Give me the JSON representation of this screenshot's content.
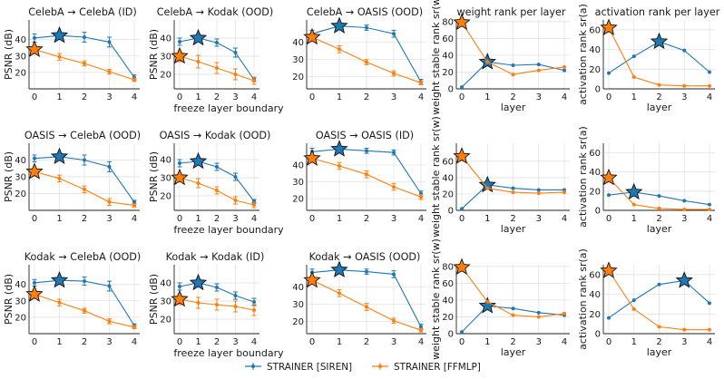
{
  "colors": {
    "siren": "#1f77b4",
    "ffmlp": "#ff7f0e"
  },
  "legend": {
    "siren": "STRAINER [SIREN]",
    "ffmlp": "STRAINER [FFMLP]"
  },
  "chart_data": [
    {
      "type": "line",
      "title": "CelebA → CelebA (ID)",
      "xlabel": "",
      "ylabel": "PSNR (dB)",
      "x": [
        0,
        1,
        2,
        3,
        4
      ],
      "ylim": [
        10,
        52
      ],
      "yticks": [
        20,
        30,
        40
      ],
      "series": [
        {
          "name": "STRAINER [SIREN]",
          "values": [
            41,
            42.5,
            41.5,
            38.5,
            17
          ],
          "err": [
            2.5,
            2,
            3,
            3,
            1.5
          ],
          "star": 1
        },
        {
          "name": "STRAINER [FFMLP]",
          "values": [
            34,
            29.5,
            25.5,
            20.5,
            15.5
          ],
          "err": [
            2,
            2,
            1.5,
            1.5,
            1
          ],
          "star": 0
        }
      ]
    },
    {
      "type": "line",
      "title": "CelebA → Kodak (OOD)",
      "xlabel": "",
      "ylabel": "PSNR (dB)",
      "x": [
        0,
        1,
        2,
        3,
        4
      ],
      "ylim": [
        12,
        50
      ],
      "yticks": [
        20,
        30,
        40
      ],
      "series": [
        {
          "name": "STRAINER [SIREN]",
          "values": [
            38,
            40,
            37.5,
            32,
            17
          ],
          "err": [
            2,
            2,
            2,
            2.5,
            1
          ],
          "star": 1
        },
        {
          "name": "STRAINER [FFMLP]",
          "values": [
            30,
            27,
            23.5,
            20,
            16.5
          ],
          "err": [
            3,
            3.5,
            3,
            3,
            2
          ],
          "star": 0
        }
      ]
    },
    {
      "type": "line",
      "title": "CelebA → OASIS (OOD)",
      "xlabel": "",
      "ylabel": "",
      "x": [
        0,
        1,
        2,
        3,
        4
      ],
      "ylim": [
        13,
        53
      ],
      "yticks": [
        20,
        30,
        40
      ],
      "series": [
        {
          "name": "STRAINER [SIREN]",
          "values": [
            45,
            49.5,
            48.5,
            45,
            17
          ],
          "err": [
            2,
            1.5,
            1.5,
            2,
            1.5
          ],
          "star": 1
        },
        {
          "name": "STRAINER [FFMLP]",
          "values": [
            43,
            36,
            28.5,
            22,
            16.5
          ],
          "err": [
            2,
            2,
            1.5,
            1.5,
            1
          ],
          "star": 0
        }
      ]
    },
    {
      "type": "line",
      "title": "weight rank per layer",
      "xlabel": "layer",
      "ylabel": "weight stable rank sr(w)",
      "x": [
        0,
        1,
        2,
        3,
        4
      ],
      "ylim": [
        0,
        82
      ],
      "yticks": [
        0,
        20,
        40,
        60,
        80
      ],
      "series": [
        {
          "name": "STRAINER [SIREN]",
          "values": [
            2,
            32,
            28,
            29,
            22
          ],
          "star": 1
        },
        {
          "name": "STRAINER [FFMLP]",
          "values": [
            79,
            32,
            17,
            22,
            26
          ],
          "star": 0
        }
      ]
    },
    {
      "type": "line",
      "title": "activation rank per layer",
      "xlabel": "layer",
      "ylabel": "activation rank sr(a)",
      "x": [
        0,
        1,
        2,
        3,
        4
      ],
      "ylim": [
        0,
        70
      ],
      "yticks": [
        0,
        20,
        40,
        60
      ],
      "series": [
        {
          "name": "STRAINER [SIREN]",
          "values": [
            16,
            33,
            48,
            39,
            17
          ],
          "star": 2
        },
        {
          "name": "STRAINER [FFMLP]",
          "values": [
            62,
            12,
            4,
            3,
            3
          ],
          "star": 0
        }
      ]
    },
    {
      "type": "line",
      "title": "OASIS → CelebA (OOD)",
      "xlabel": "",
      "ylabel": "PSNR (dB)",
      "x": [
        0,
        1,
        2,
        3,
        4
      ],
      "ylim": [
        10,
        50
      ],
      "yticks": [
        20,
        30,
        40
      ],
      "series": [
        {
          "name": "STRAINER [SIREN]",
          "values": [
            41,
            42,
            40,
            36,
            15
          ],
          "err": [
            2,
            1.5,
            3,
            3,
            1
          ],
          "star": 1
        },
        {
          "name": "STRAINER [FFMLP]",
          "values": [
            33,
            29,
            22.5,
            15,
            13
          ],
          "err": [
            2,
            2,
            2,
            2,
            1
          ],
          "star": 0
        }
      ]
    },
    {
      "type": "line",
      "title": "OASIS → Kodak (OOD)",
      "xlabel": "",
      "ylabel": "PSNR (dB)",
      "x": [
        0,
        1,
        2,
        3,
        4
      ],
      "ylim": [
        12,
        49
      ],
      "yticks": [
        20,
        30,
        40
      ],
      "series": [
        {
          "name": "STRAINER [SIREN]",
          "values": [
            38,
            39,
            36,
            30.5,
            17
          ],
          "err": [
            2,
            2,
            2,
            2,
            1
          ],
          "star": 1
        },
        {
          "name": "STRAINER [FFMLP]",
          "values": [
            30,
            27,
            23,
            17.5,
            15
          ],
          "err": [
            2,
            2.5,
            2,
            2,
            1.5
          ],
          "star": 0
        }
      ]
    },
    {
      "type": "line",
      "title": "OASIS → OASIS (ID)",
      "xlabel": "",
      "ylabel": "",
      "x": [
        0,
        1,
        2,
        3,
        4
      ],
      "ylim": [
        13,
        53
      ],
      "yticks": [
        20,
        30,
        40
      ],
      "series": [
        {
          "name": "STRAINER [SIREN]",
          "values": [
            48,
            49.5,
            48.5,
            47.5,
            23
          ],
          "err": [
            2,
            1.5,
            1.5,
            1.5,
            1.5
          ],
          "star": 1
        },
        {
          "name": "STRAINER [FFMLP]",
          "values": [
            44,
            39.5,
            34.5,
            27,
            21
          ],
          "err": [
            2,
            2,
            2,
            2,
            1.5
          ],
          "star": 0
        }
      ]
    },
    {
      "type": "line",
      "title": "",
      "xlabel": "layer",
      "ylabel": "weight stable rank sr(w)",
      "x": [
        0,
        1,
        2,
        3,
        4
      ],
      "ylim": [
        0,
        82
      ],
      "yticks": [
        0,
        20,
        40,
        60
      ],
      "series": [
        {
          "name": "STRAINER [SIREN]",
          "values": [
            2,
            31,
            27,
            25,
            25
          ],
          "star": 1
        },
        {
          "name": "STRAINER [FFMLP]",
          "values": [
            66,
            27,
            22,
            21,
            22
          ],
          "star": 0
        }
      ]
    },
    {
      "type": "line",
      "title": "",
      "xlabel": "layer",
      "ylabel": "activation rank sr(a)",
      "x": [
        0,
        1,
        2,
        3,
        4
      ],
      "ylim": [
        0,
        70
      ],
      "yticks": [
        0,
        20,
        40,
        60
      ],
      "series": [
        {
          "name": "STRAINER [SIREN]",
          "values": [
            16,
            19,
            15,
            10,
            6
          ],
          "star": 1
        },
        {
          "name": "STRAINER [FFMLP]",
          "values": [
            34,
            6,
            2,
            1,
            1
          ],
          "star": 0
        }
      ]
    },
    {
      "type": "line",
      "title": "Kodak → CelebA (OOD)",
      "xlabel": "",
      "ylabel": "PSNR (dB)",
      "x": [
        0,
        1,
        2,
        3,
        4
      ],
      "ylim": [
        10,
        52
      ],
      "yticks": [
        20,
        30,
        40
      ],
      "series": [
        {
          "name": "STRAINER [SIREN]",
          "values": [
            41,
            42.5,
            42,
            39,
            15
          ],
          "err": [
            2,
            2,
            2.5,
            3,
            1
          ],
          "star": 1
        },
        {
          "name": "STRAINER [FFMLP]",
          "values": [
            34,
            29,
            24,
            17.5,
            14
          ],
          "err": [
            2,
            2,
            1.5,
            1.5,
            1
          ],
          "star": 0
        }
      ]
    },
    {
      "type": "line",
      "title": "Kodak → Kodak (ID)",
      "xlabel": "",
      "ylabel": "PSNR (dB)",
      "x": [
        0,
        1,
        2,
        3,
        4
      ],
      "ylim": [
        12,
        50
      ],
      "yticks": [
        20,
        30,
        40
      ],
      "series": [
        {
          "name": "STRAINER [SIREN]",
          "values": [
            38,
            40,
            37.5,
            33,
            29.5
          ],
          "err": [
            2,
            2,
            2,
            2,
            2
          ],
          "star": 1
        },
        {
          "name": "STRAINER [FFMLP]",
          "values": [
            31,
            29,
            28,
            27,
            25
          ],
          "err": [
            3,
            3,
            3,
            3,
            3
          ],
          "star": 0
        }
      ]
    },
    {
      "type": "line",
      "title": "Kodak → OASIS (OOD)",
      "xlabel": "",
      "ylabel": "",
      "x": [
        0,
        1,
        2,
        3,
        4
      ],
      "ylim": [
        13,
        53
      ],
      "yticks": [
        20,
        30,
        40
      ],
      "series": [
        {
          "name": "STRAINER [SIREN]",
          "values": [
            48.5,
            50,
            49,
            47.5,
            17
          ],
          "err": [
            2,
            1.5,
            1.5,
            2,
            1.5
          ],
          "star": 1
        },
        {
          "name": "STRAINER [FFMLP]",
          "values": [
            44,
            36.5,
            28.5,
            20.5,
            15
          ],
          "err": [
            2,
            2,
            2,
            1.5,
            1
          ],
          "star": 0
        }
      ]
    },
    {
      "type": "line",
      "title": "",
      "xlabel": "layer",
      "ylabel": "weight stable rank sr(w)",
      "x": [
        0,
        1,
        2,
        3,
        4
      ],
      "ylim": [
        0,
        82
      ],
      "yticks": [
        0,
        20,
        40,
        60,
        80
      ],
      "series": [
        {
          "name": "STRAINER [SIREN]",
          "values": [
            2,
            33,
            30,
            25,
            22
          ],
          "star": 1
        },
        {
          "name": "STRAINER [FFMLP]",
          "values": [
            79,
            38,
            22,
            20,
            24
          ],
          "star": 0
        }
      ]
    },
    {
      "type": "line",
      "title": "",
      "xlabel": "layer",
      "ylabel": "activation rank sr(a)",
      "x": [
        0,
        1,
        2,
        3,
        4
      ],
      "ylim": [
        0,
        70
      ],
      "yticks": [
        0,
        20,
        40,
        60
      ],
      "series": [
        {
          "name": "STRAINER [SIREN]",
          "values": [
            16,
            34,
            50,
            54,
            31
          ],
          "star": 3
        },
        {
          "name": "STRAINER [FFMLP]",
          "values": [
            64,
            25,
            7,
            4,
            4
          ],
          "star": 0
        }
      ]
    }
  ],
  "shared_xlabel": "freeze layer boundary"
}
